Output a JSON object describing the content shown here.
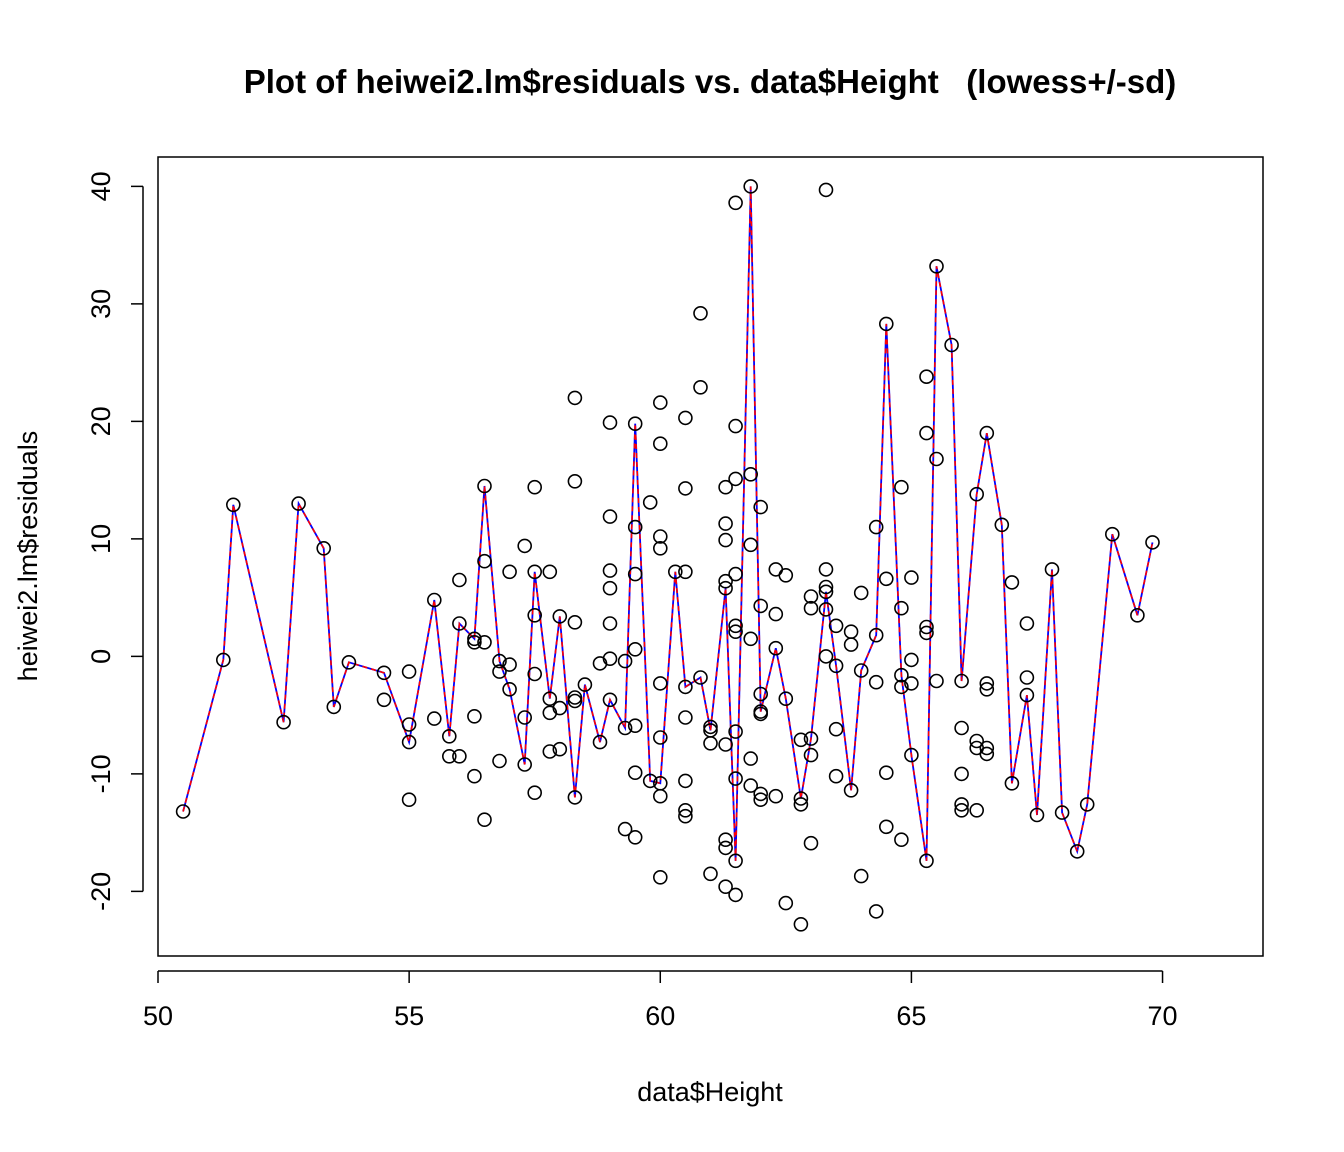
{
  "chart_data": {
    "type": "scatter",
    "title": "Plot of heiwei2.lm$residuals vs. data$Height   (lowess+/-sd)",
    "xlabel": "data$Height",
    "ylabel": "heiwei2.lm$residuals",
    "xlim": [
      50,
      72
    ],
    "ylim": [
      -25.5,
      42.5
    ],
    "xticks": [
      50,
      55,
      60,
      65,
      70
    ],
    "yticks": [
      -20,
      -10,
      0,
      10,
      20,
      30,
      40
    ],
    "grid": false,
    "colors": {
      "points": "#000000",
      "lowess": "#ff0000",
      "sd_band": "#0000ff"
    },
    "points": [
      [
        50.5,
        -13.2
      ],
      [
        51.3,
        -0.3
      ],
      [
        51.5,
        12.9
      ],
      [
        52.5,
        -5.6
      ],
      [
        52.8,
        13.0
      ],
      [
        53.3,
        9.2
      ],
      [
        53.5,
        -4.3
      ],
      [
        53.8,
        -0.5
      ],
      [
        54.5,
        -1.4
      ],
      [
        54.5,
        -3.7
      ],
      [
        55.0,
        -1.3
      ],
      [
        55.0,
        -5.8
      ],
      [
        55.0,
        -7.3
      ],
      [
        55.0,
        -12.2
      ],
      [
        55.5,
        4.8
      ],
      [
        55.5,
        -5.3
      ],
      [
        55.8,
        -6.8
      ],
      [
        55.8,
        -8.5
      ],
      [
        56.0,
        6.5
      ],
      [
        56.0,
        2.8
      ],
      [
        56.0,
        -8.5
      ],
      [
        56.3,
        1.5
      ],
      [
        56.3,
        1.2
      ],
      [
        56.3,
        -5.1
      ],
      [
        56.3,
        -10.2
      ],
      [
        56.5,
        14.5
      ],
      [
        56.5,
        8.1
      ],
      [
        56.5,
        1.2
      ],
      [
        56.5,
        -13.9
      ],
      [
        56.8,
        -0.4
      ],
      [
        56.8,
        -1.3
      ],
      [
        56.8,
        -8.9
      ],
      [
        57.0,
        7.2
      ],
      [
        57.0,
        -0.7
      ],
      [
        57.0,
        -2.8
      ],
      [
        57.3,
        9.4
      ],
      [
        57.3,
        -5.2
      ],
      [
        57.3,
        -9.2
      ],
      [
        57.5,
        14.4
      ],
      [
        57.5,
        7.2
      ],
      [
        57.5,
        3.5
      ],
      [
        57.5,
        -1.5
      ],
      [
        57.5,
        -11.6
      ],
      [
        57.8,
        7.2
      ],
      [
        57.8,
        -3.6
      ],
      [
        57.8,
        -4.8
      ],
      [
        57.8,
        -8.1
      ],
      [
        58.0,
        3.4
      ],
      [
        58.0,
        -4.4
      ],
      [
        58.0,
        -7.9
      ],
      [
        58.3,
        22.0
      ],
      [
        58.3,
        14.9
      ],
      [
        58.3,
        2.9
      ],
      [
        58.3,
        -3.5
      ],
      [
        58.3,
        -3.8
      ],
      [
        58.3,
        -12.0
      ],
      [
        58.5,
        -2.4
      ],
      [
        58.8,
        -0.6
      ],
      [
        58.8,
        -7.3
      ],
      [
        59.0,
        19.9
      ],
      [
        59.0,
        11.9
      ],
      [
        59.0,
        7.3
      ],
      [
        59.0,
        5.8
      ],
      [
        59.0,
        2.8
      ],
      [
        59.0,
        -0.2
      ],
      [
        59.0,
        -3.7
      ],
      [
        59.3,
        -0.4
      ],
      [
        59.3,
        -6.1
      ],
      [
        59.3,
        -14.7
      ],
      [
        59.5,
        19.8
      ],
      [
        59.5,
        11.0
      ],
      [
        59.5,
        7.0
      ],
      [
        59.5,
        0.6
      ],
      [
        59.5,
        -5.9
      ],
      [
        59.5,
        -9.9
      ],
      [
        59.5,
        -15.4
      ],
      [
        59.8,
        13.1
      ],
      [
        59.8,
        -10.6
      ],
      [
        60.0,
        21.6
      ],
      [
        60.0,
        18.1
      ],
      [
        60.0,
        10.2
      ],
      [
        60.0,
        9.2
      ],
      [
        60.0,
        -2.3
      ],
      [
        60.0,
        -6.9
      ],
      [
        60.0,
        -10.8
      ],
      [
        60.0,
        -11.9
      ],
      [
        60.0,
        -18.8
      ],
      [
        60.3,
        7.2
      ],
      [
        60.5,
        20.3
      ],
      [
        60.5,
        14.3
      ],
      [
        60.5,
        7.2
      ],
      [
        60.5,
        -2.6
      ],
      [
        60.5,
        -5.2
      ],
      [
        60.5,
        -10.6
      ],
      [
        60.5,
        -13.1
      ],
      [
        60.5,
        -13.6
      ],
      [
        60.8,
        29.2
      ],
      [
        60.8,
        22.9
      ],
      [
        60.8,
        -1.8
      ],
      [
        61.0,
        -6.0
      ],
      [
        61.0,
        -6.3
      ],
      [
        61.0,
        -7.4
      ],
      [
        61.0,
        -18.5
      ],
      [
        61.3,
        14.4
      ],
      [
        61.3,
        11.3
      ],
      [
        61.3,
        9.9
      ],
      [
        61.3,
        6.4
      ],
      [
        61.3,
        5.8
      ],
      [
        61.3,
        -7.5
      ],
      [
        61.3,
        -15.6
      ],
      [
        61.3,
        -16.3
      ],
      [
        61.3,
        -19.6
      ],
      [
        61.5,
        38.6
      ],
      [
        61.5,
        19.6
      ],
      [
        61.5,
        15.1
      ],
      [
        61.5,
        7.0
      ],
      [
        61.5,
        2.6
      ],
      [
        61.5,
        2.1
      ],
      [
        61.5,
        -6.4
      ],
      [
        61.5,
        -10.4
      ],
      [
        61.5,
        -17.4
      ],
      [
        61.5,
        -20.3
      ],
      [
        61.8,
        40.0
      ],
      [
        61.8,
        15.5
      ],
      [
        61.8,
        9.5
      ],
      [
        61.8,
        1.5
      ],
      [
        61.8,
        -8.7
      ],
      [
        61.8,
        -11.0
      ],
      [
        62.0,
        12.7
      ],
      [
        62.0,
        4.3
      ],
      [
        62.0,
        -3.2
      ],
      [
        62.0,
        -4.7
      ],
      [
        62.0,
        -4.9
      ],
      [
        62.0,
        -11.7
      ],
      [
        62.0,
        -12.2
      ],
      [
        62.3,
        7.4
      ],
      [
        62.3,
        3.6
      ],
      [
        62.3,
        0.7
      ],
      [
        62.3,
        -11.9
      ],
      [
        62.5,
        6.9
      ],
      [
        62.5,
        -3.6
      ],
      [
        62.5,
        -21.0
      ],
      [
        62.8,
        -7.1
      ],
      [
        62.8,
        -12.1
      ],
      [
        62.8,
        -12.6
      ],
      [
        62.8,
        -22.8
      ],
      [
        63.0,
        5.1
      ],
      [
        63.0,
        4.1
      ],
      [
        63.0,
        -7.0
      ],
      [
        63.0,
        -8.4
      ],
      [
        63.0,
        -15.9
      ],
      [
        63.3,
        39.7
      ],
      [
        63.3,
        7.4
      ],
      [
        63.3,
        5.9
      ],
      [
        63.3,
        5.5
      ],
      [
        63.3,
        4.0
      ],
      [
        63.3,
        0.0
      ],
      [
        63.5,
        2.6
      ],
      [
        63.5,
        -0.8
      ],
      [
        63.5,
        -6.2
      ],
      [
        63.5,
        -10.2
      ],
      [
        63.8,
        2.1
      ],
      [
        63.8,
        1.0
      ],
      [
        63.8,
        -11.4
      ],
      [
        64.0,
        5.4
      ],
      [
        64.0,
        -1.2
      ],
      [
        64.0,
        -18.7
      ],
      [
        64.3,
        11.0
      ],
      [
        64.3,
        1.8
      ],
      [
        64.3,
        -2.2
      ],
      [
        64.3,
        -21.7
      ],
      [
        64.5,
        28.3
      ],
      [
        64.5,
        6.6
      ],
      [
        64.5,
        -9.9
      ],
      [
        64.5,
        -14.5
      ],
      [
        64.8,
        14.4
      ],
      [
        64.8,
        4.1
      ],
      [
        64.8,
        -1.6
      ],
      [
        64.8,
        -2.6
      ],
      [
        64.8,
        -15.6
      ],
      [
        65.0,
        6.7
      ],
      [
        65.0,
        -0.3
      ],
      [
        65.0,
        -2.3
      ],
      [
        65.0,
        -8.4
      ],
      [
        65.3,
        23.8
      ],
      [
        65.3,
        19.0
      ],
      [
        65.3,
        2.5
      ],
      [
        65.3,
        2.0
      ],
      [
        65.3,
        -17.4
      ],
      [
        65.5,
        33.2
      ],
      [
        65.5,
        16.8
      ],
      [
        65.5,
        -2.1
      ],
      [
        65.8,
        26.5
      ],
      [
        66.0,
        -2.1
      ],
      [
        66.0,
        -6.1
      ],
      [
        66.0,
        -10.0
      ],
      [
        66.0,
        -12.6
      ],
      [
        66.0,
        -13.1
      ],
      [
        66.3,
        13.8
      ],
      [
        66.3,
        -7.2
      ],
      [
        66.3,
        -7.8
      ],
      [
        66.3,
        -13.1
      ],
      [
        66.5,
        19.0
      ],
      [
        66.5,
        -2.3
      ],
      [
        66.5,
        -2.8
      ],
      [
        66.5,
        -7.8
      ],
      [
        66.5,
        -8.3
      ],
      [
        66.8,
        11.2
      ],
      [
        67.0,
        6.3
      ],
      [
        67.0,
        -10.8
      ],
      [
        67.3,
        2.8
      ],
      [
        67.3,
        -1.8
      ],
      [
        67.3,
        -3.3
      ],
      [
        67.5,
        -13.5
      ],
      [
        67.8,
        7.4
      ],
      [
        68.0,
        -13.3
      ],
      [
        68.3,
        -16.6
      ],
      [
        68.5,
        -12.6
      ],
      [
        69.0,
        10.4
      ],
      [
        69.5,
        3.5
      ],
      [
        69.8,
        9.7
      ]
    ],
    "lowess_line": [
      [
        50.5,
        -13.2
      ],
      [
        51.3,
        -0.3
      ],
      [
        51.5,
        12.9
      ],
      [
        52.5,
        -5.6
      ],
      [
        52.8,
        13.0
      ],
      [
        53.3,
        9.2
      ],
      [
        53.5,
        -4.3
      ],
      [
        53.8,
        -0.5
      ],
      [
        54.5,
        -1.4
      ],
      [
        55.0,
        -7.3
      ],
      [
        55.5,
        4.8
      ],
      [
        55.8,
        -6.8
      ],
      [
        56.0,
        2.8
      ],
      [
        56.3,
        1.5
      ],
      [
        56.5,
        14.5
      ],
      [
        56.8,
        -0.4
      ],
      [
        57.0,
        -2.8
      ],
      [
        57.3,
        -9.2
      ],
      [
        57.5,
        7.2
      ],
      [
        57.8,
        -3.6
      ],
      [
        58.0,
        3.4
      ],
      [
        58.3,
        -12.0
      ],
      [
        58.5,
        -2.4
      ],
      [
        58.8,
        -7.3
      ],
      [
        59.0,
        -3.7
      ],
      [
        59.3,
        -6.1
      ],
      [
        59.5,
        19.8
      ],
      [
        59.8,
        -10.6
      ],
      [
        60.0,
        -10.8
      ],
      [
        60.3,
        7.2
      ],
      [
        60.5,
        -2.6
      ],
      [
        60.8,
        -1.8
      ],
      [
        61.0,
        -6.3
      ],
      [
        61.3,
        5.8
      ],
      [
        61.5,
        -17.4
      ],
      [
        61.8,
        40.0
      ],
      [
        62.0,
        -4.7
      ],
      [
        62.3,
        0.7
      ],
      [
        62.5,
        -3.6
      ],
      [
        62.8,
        -12.1
      ],
      [
        63.0,
        -7.0
      ],
      [
        63.3,
        5.5
      ],
      [
        63.5,
        -0.8
      ],
      [
        63.8,
        -11.4
      ],
      [
        64.0,
        -1.2
      ],
      [
        64.3,
        1.8
      ],
      [
        64.5,
        28.3
      ],
      [
        64.8,
        -1.6
      ],
      [
        65.0,
        -8.4
      ],
      [
        65.3,
        -17.4
      ],
      [
        65.5,
        33.2
      ],
      [
        65.8,
        26.5
      ],
      [
        66.0,
        -2.1
      ],
      [
        66.3,
        13.8
      ],
      [
        66.5,
        19.0
      ],
      [
        66.8,
        11.2
      ],
      [
        67.0,
        -10.8
      ],
      [
        67.3,
        -3.3
      ],
      [
        67.5,
        -13.5
      ],
      [
        67.8,
        7.4
      ],
      [
        68.0,
        -13.3
      ],
      [
        68.3,
        -16.6
      ],
      [
        68.5,
        -12.6
      ],
      [
        69.0,
        10.4
      ],
      [
        69.5,
        3.5
      ],
      [
        69.8,
        9.7
      ]
    ]
  }
}
